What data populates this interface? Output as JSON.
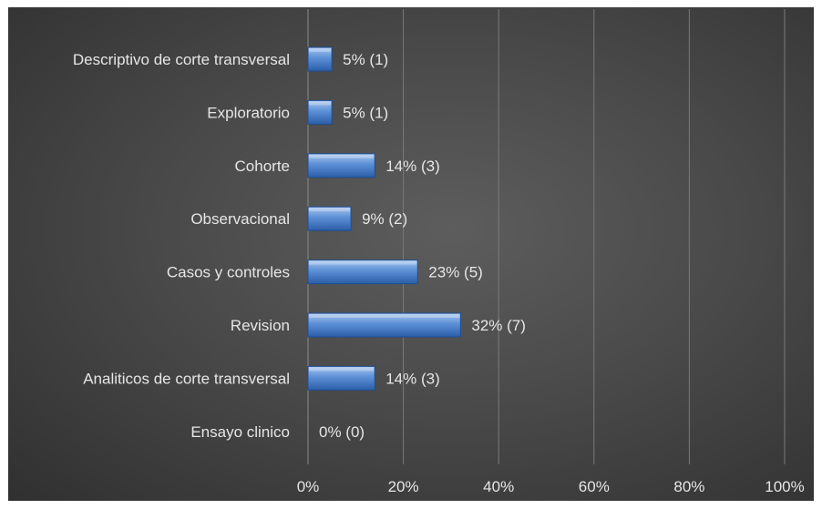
{
  "chart_data": {
    "type": "bar",
    "orientation": "horizontal",
    "title": "",
    "xlabel": "",
    "ylabel": "",
    "categories": [
      "Descriptivo de corte transversal",
      "Exploratorio",
      "Cohorte",
      "Observacional",
      "Casos y controles",
      "Revision",
      "Analiticos de corte transversal",
      "Ensayo clinico"
    ],
    "values": [
      5,
      5,
      14,
      9,
      23,
      32,
      14,
      0
    ],
    "counts": [
      1,
      1,
      3,
      2,
      5,
      7,
      3,
      0
    ],
    "data_labels": [
      "5% (1)",
      "5% (1)",
      "14% (3)",
      "9% (2)",
      "23% (5)",
      "32% (7)",
      "14% (3)",
      "0% (0)"
    ],
    "xlim": [
      0,
      100
    ],
    "x_ticks": [
      0,
      20,
      40,
      60,
      80,
      100
    ],
    "x_tick_labels": [
      "0%",
      "20%",
      "40%",
      "60%",
      "80%",
      "100%"
    ],
    "grid": "vertical",
    "legend": "none",
    "colors": {
      "bar_light": "#a9c6ee",
      "bar_mid": "#5b8fd6",
      "bar_dark": "#2c5ea8",
      "bar_edge": "#1f4f95",
      "text": "#e6e6e6",
      "gridline": "#7a7a7a"
    }
  }
}
